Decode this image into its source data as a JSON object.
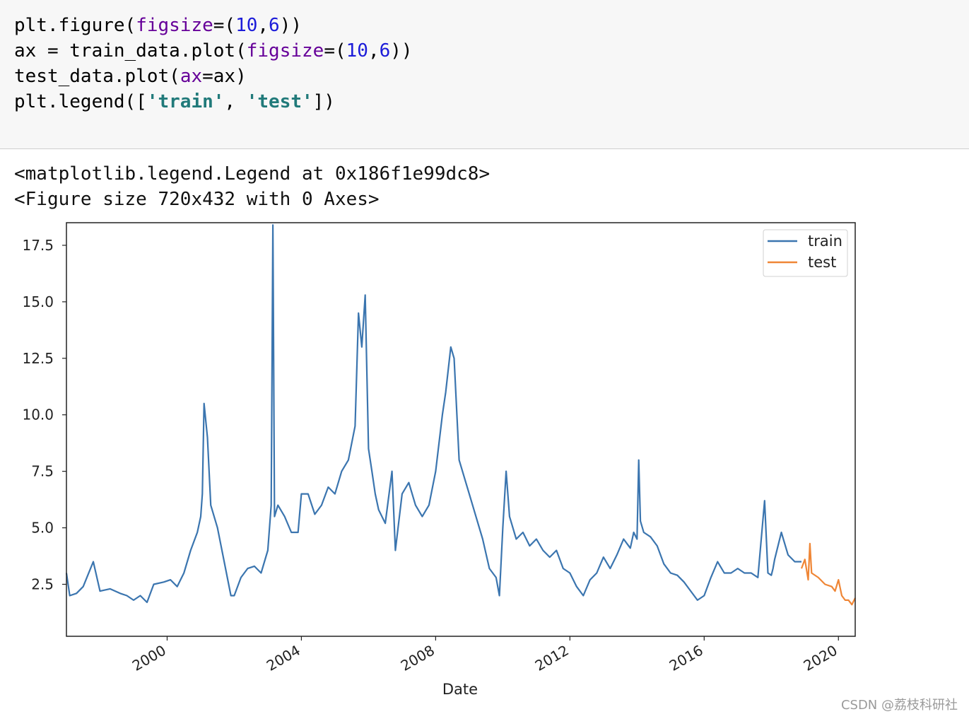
{
  "code_cell": {
    "lines": [
      [
        "plt.figure(",
        "figsize",
        "=(",
        "10",
        ",",
        "6",
        "))"
      ],
      [
        "ax = train_data.plot(",
        "figsize",
        "=(",
        "10",
        ",",
        "6",
        "))"
      ],
      [
        "test_data.plot(",
        "ax",
        "=ax)"
      ],
      [
        "plt.legend([",
        "'train'",
        ", ",
        "'test'",
        "])"
      ]
    ]
  },
  "output": {
    "line1": "<matplotlib.legend.Legend at 0x186f1e99dc8>",
    "line2": "<Figure size 720x432 with 0 Axes>"
  },
  "chart_data": {
    "type": "line",
    "xlabel": "Date",
    "ylabel": "",
    "xlim": [
      1997.0,
      2020.5
    ],
    "ylim": [
      0.2,
      18.5
    ],
    "yticks": [
      "2.5",
      "5.0",
      "7.5",
      "10.0",
      "12.5",
      "15.0",
      "17.5"
    ],
    "ytick_values": [
      2.5,
      5.0,
      7.5,
      10.0,
      12.5,
      15.0,
      17.5
    ],
    "xticks": [
      "2000",
      "2004",
      "2008",
      "2012",
      "2016",
      "2020"
    ],
    "xtick_values": [
      2000,
      2004,
      2008,
      2012,
      2016,
      2020
    ],
    "legend_placement": "top-right",
    "series": [
      {
        "name": "train",
        "color": "#3b75af",
        "x": [
          1997.0,
          1997.1,
          1997.3,
          1997.5,
          1997.8,
          1998.0,
          1998.3,
          1998.6,
          1998.8,
          1999.0,
          1999.2,
          1999.4,
          1999.6,
          1999.9,
          2000.1,
          2000.3,
          2000.5,
          2000.7,
          2000.9,
          2001.0,
          2001.05,
          2001.1,
          2001.2,
          2001.3,
          2001.5,
          2001.7,
          2001.9,
          2002.0,
          2002.2,
          2002.4,
          2002.6,
          2002.8,
          2003.0,
          2003.1,
          2003.15,
          2003.2,
          2003.3,
          2003.5,
          2003.7,
          2003.9,
          2004.0,
          2004.2,
          2004.4,
          2004.6,
          2004.8,
          2005.0,
          2005.2,
          2005.4,
          2005.6,
          2005.7,
          2005.8,
          2005.9,
          2006.0,
          2006.1,
          2006.2,
          2006.3,
          2006.5,
          2006.7,
          2006.8,
          2007.0,
          2007.2,
          2007.4,
          2007.6,
          2007.8,
          2008.0,
          2008.2,
          2008.3,
          2008.45,
          2008.55,
          2008.7,
          2008.9,
          2009.0,
          2009.2,
          2009.4,
          2009.6,
          2009.8,
          2009.9,
          2010.0,
          2010.1,
          2010.2,
          2010.4,
          2010.6,
          2010.8,
          2011.0,
          2011.2,
          2011.4,
          2011.6,
          2011.8,
          2012.0,
          2012.2,
          2012.4,
          2012.6,
          2012.8,
          2013.0,
          2013.2,
          2013.4,
          2013.6,
          2013.8,
          2013.9,
          2014.0,
          2014.05,
          2014.1,
          2014.2,
          2014.4,
          2014.6,
          2014.8,
          2015.0,
          2015.2,
          2015.4,
          2015.6,
          2015.8,
          2016.0,
          2016.2,
          2016.4,
          2016.6,
          2016.8,
          2017.0,
          2017.2,
          2017.4,
          2017.6,
          2017.8,
          2017.9,
          2018.0,
          2018.05,
          2018.1,
          2018.3,
          2018.5,
          2018.7,
          2018.8,
          2018.9
        ],
        "values": [
          3.0,
          2.0,
          2.1,
          2.4,
          3.5,
          2.2,
          2.3,
          2.1,
          2.0,
          1.8,
          2.0,
          1.7,
          2.5,
          2.6,
          2.7,
          2.4,
          3.0,
          4.0,
          4.8,
          5.5,
          6.5,
          10.5,
          9.0,
          6.0,
          5.0,
          3.5,
          2.0,
          2.0,
          2.8,
          3.2,
          3.3,
          3.0,
          4.0,
          6.0,
          18.4,
          5.5,
          6.0,
          5.5,
          4.8,
          4.8,
          6.5,
          6.5,
          5.6,
          6.0,
          6.8,
          6.5,
          7.5,
          8.0,
          9.5,
          14.5,
          13.0,
          15.3,
          8.5,
          7.5,
          6.5,
          5.8,
          5.2,
          7.5,
          4.0,
          6.5,
          7.0,
          6.0,
          5.5,
          6.0,
          7.5,
          10.0,
          11.0,
          13.0,
          12.5,
          8.0,
          7.0,
          6.5,
          5.5,
          4.5,
          3.2,
          2.8,
          2.0,
          5.0,
          7.5,
          5.5,
          4.5,
          4.8,
          4.2,
          4.5,
          4.0,
          3.7,
          4.0,
          3.2,
          3.0,
          2.4,
          2.0,
          2.7,
          3.0,
          3.7,
          3.2,
          3.8,
          4.5,
          4.1,
          4.8,
          4.5,
          8.0,
          5.3,
          4.8,
          4.6,
          4.2,
          3.4,
          3.0,
          2.9,
          2.6,
          2.2,
          1.8,
          2.0,
          2.8,
          3.5,
          3.0,
          3.0,
          3.2,
          3.0,
          3.0,
          2.8,
          6.2,
          3.0,
          2.9,
          3.2,
          3.6,
          4.8,
          3.8,
          3.5,
          3.5,
          3.5
        ]
      },
      {
        "name": "test",
        "color": "#ef8636",
        "x": [
          2018.9,
          2019.0,
          2019.1,
          2019.15,
          2019.2,
          2019.4,
          2019.6,
          2019.8,
          2019.9,
          2020.0,
          2020.1,
          2020.2,
          2020.3,
          2020.4,
          2020.5
        ],
        "values": [
          3.2,
          3.6,
          2.7,
          4.3,
          3.0,
          2.8,
          2.5,
          2.4,
          2.2,
          2.7,
          2.0,
          1.8,
          1.8,
          1.6,
          1.9
        ]
      }
    ]
  },
  "watermark": "CSDN @荔枝科研社"
}
